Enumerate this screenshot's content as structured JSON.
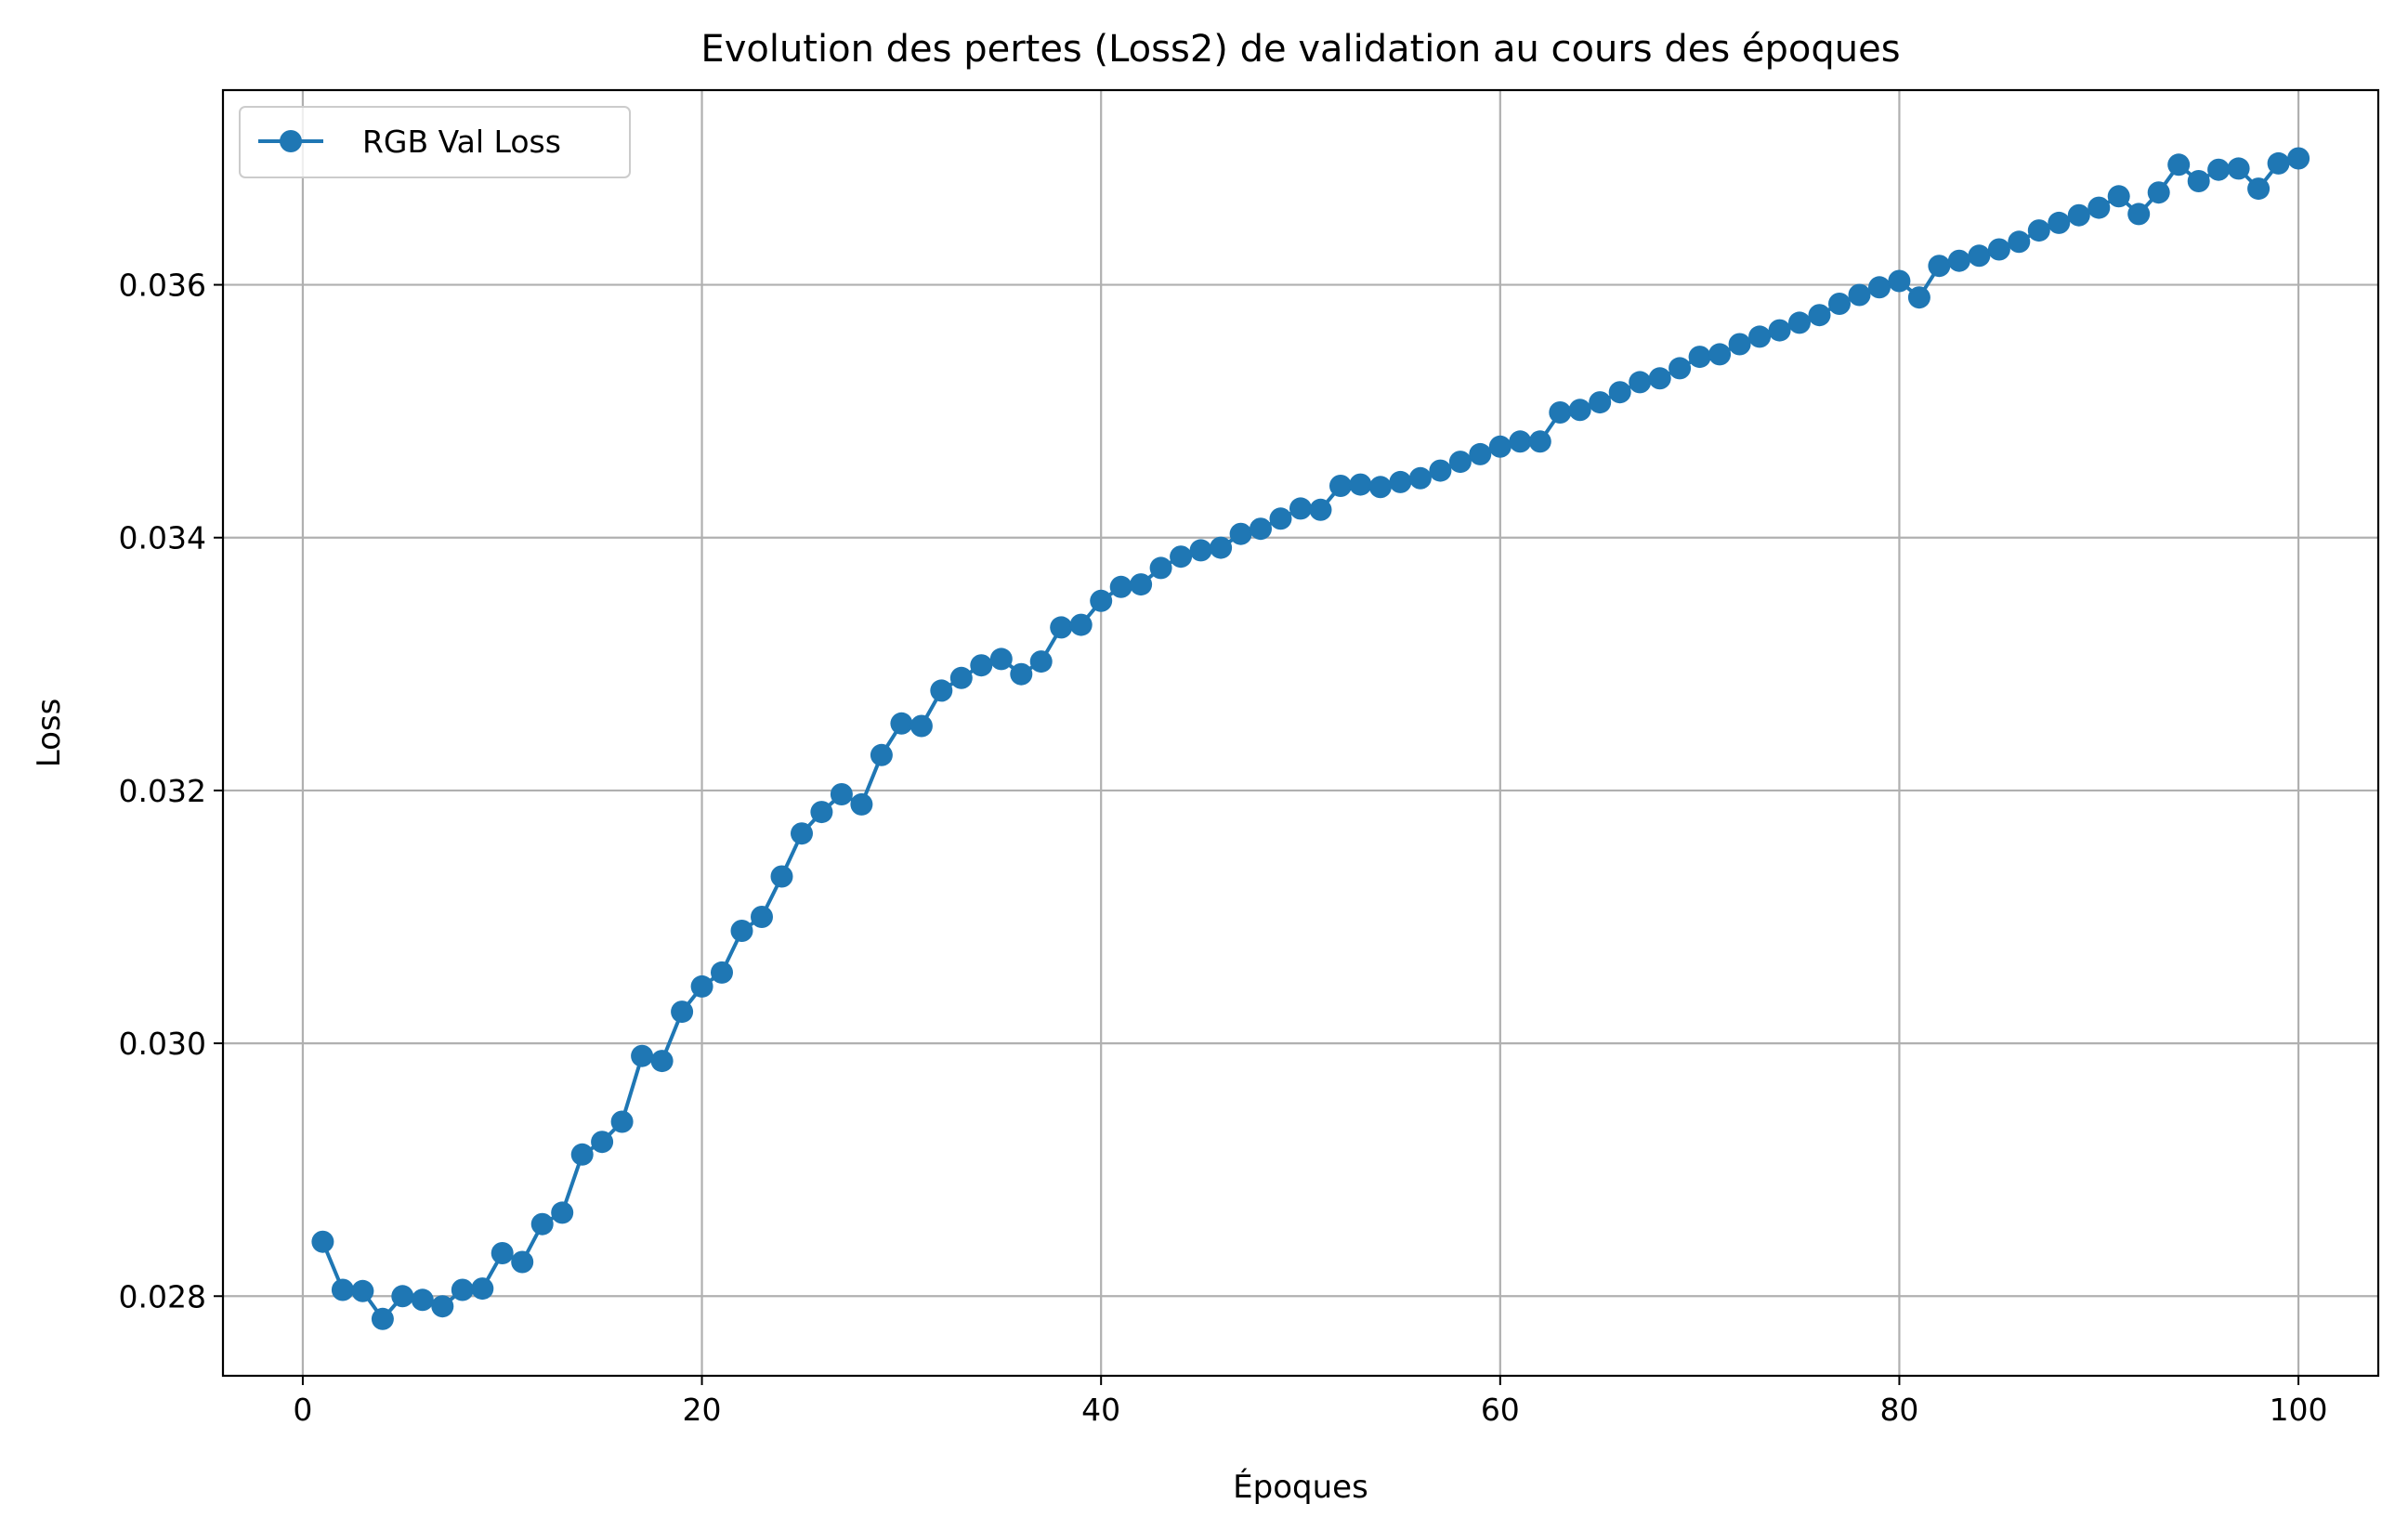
{
  "chart_data": {
    "type": "line",
    "title": "Evolution des pertes (Loss2) de validation au cours des époques",
    "xlabel": "Époques",
    "ylabel": "Loss",
    "xlim": [
      -4,
      104
    ],
    "ylim": [
      0.02737,
      0.03754
    ],
    "xticks": [
      0,
      20,
      40,
      60,
      80,
      100
    ],
    "xtick_labels": [
      "0",
      "20",
      "40",
      "60",
      "80",
      "100"
    ],
    "yticks": [
      0.028,
      0.03,
      0.032,
      0.034,
      0.036
    ],
    "ytick_labels": [
      "0.028",
      "0.030",
      "0.032",
      "0.034",
      "0.036"
    ],
    "grid": true,
    "legend_position": "top-left",
    "series": [
      {
        "name": "RGB Val Loss",
        "color": "#1f77b4",
        "marker": "circle",
        "x": [
          1,
          2,
          3,
          4,
          5,
          6,
          7,
          8,
          9,
          10,
          11,
          12,
          13,
          14,
          15,
          16,
          17,
          18,
          19,
          20,
          21,
          22,
          23,
          24,
          25,
          26,
          27,
          28,
          29,
          30,
          31,
          32,
          33,
          34,
          35,
          36,
          37,
          38,
          39,
          40,
          41,
          42,
          43,
          44,
          45,
          46,
          47,
          48,
          49,
          50,
          51,
          52,
          53,
          54,
          55,
          56,
          57,
          58,
          59,
          60,
          61,
          62,
          63,
          64,
          65,
          66,
          67,
          68,
          69,
          70,
          71,
          72,
          73,
          74,
          75,
          76,
          77,
          78,
          79,
          80,
          81,
          82,
          83,
          84,
          85,
          86,
          87,
          88,
          89,
          90,
          91,
          92,
          93,
          94,
          95,
          96,
          97,
          98,
          99,
          100
        ],
        "y": [
          0.02843,
          0.02805,
          0.02804,
          0.02782,
          0.028,
          0.02797,
          0.02792,
          0.02805,
          0.02806,
          0.02834,
          0.02827,
          0.02857,
          0.02866,
          0.02912,
          0.02922,
          0.02938,
          0.0299,
          0.02986,
          0.03025,
          0.03045,
          0.03056,
          0.03089,
          0.031,
          0.03132,
          0.03166,
          0.03183,
          0.03197,
          0.03189,
          0.03228,
          0.03253,
          0.03251,
          0.03279,
          0.03289,
          0.03299,
          0.03304,
          0.03292,
          0.03302,
          0.03329,
          0.03331,
          0.0335,
          0.03361,
          0.03363,
          0.03376,
          0.03385,
          0.0339,
          0.03392,
          0.03403,
          0.03407,
          0.03415,
          0.03423,
          0.03422,
          0.03441,
          0.03442,
          0.0344,
          0.03444,
          0.03447,
          0.03453,
          0.0346,
          0.03466,
          0.03472,
          0.03476,
          0.03476,
          0.03499,
          0.03501,
          0.03507,
          0.03515,
          0.03523,
          0.03526,
          0.03534,
          0.03543,
          0.03545,
          0.03553,
          0.03559,
          0.03564,
          0.0357,
          0.03576,
          0.03585,
          0.03592,
          0.03598,
          0.03603,
          0.0359,
          0.03615,
          0.03619,
          0.03623,
          0.03628,
          0.03634,
          0.03643,
          0.03649,
          0.03655,
          0.03661,
          0.0367,
          0.03656,
          0.03673,
          0.03695,
          0.03682,
          0.03691,
          0.03692,
          0.03676,
          0.03696,
          0.037
        ]
      }
    ]
  }
}
